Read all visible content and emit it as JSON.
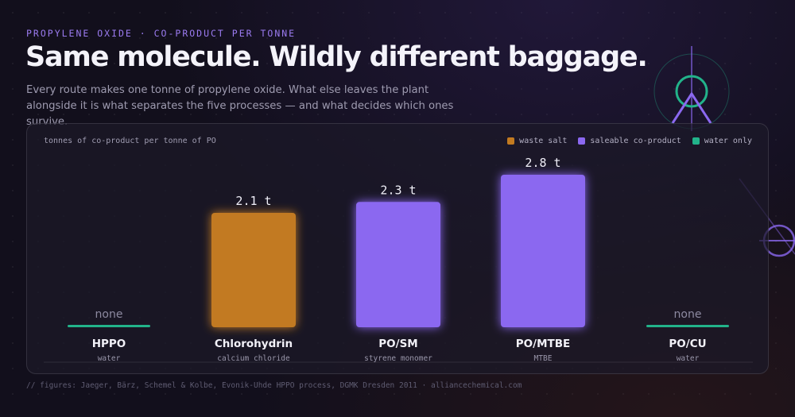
{
  "header": {
    "eyebrow": "PROPYLENE OXIDE · CO-PRODUCT PER TONNE",
    "title": "Same molecule. Wildly different baggage.",
    "subtitle": "Every route makes one tonne of propylene oxide. What else leaves the plant alongside it is what separates the five processes — and what decides which ones survive."
  },
  "colors": {
    "waste_salt": "#c27a20",
    "saleable": "#8b68f0",
    "water": "#22b38a",
    "accent": "#9b7bf0"
  },
  "chart_data": {
    "type": "bar",
    "ylabel": "tonnes of co-product per tonne of PO",
    "legend_position": "top-right",
    "legend": [
      {
        "label": "waste salt",
        "kind": "waste_salt"
      },
      {
        "label": "saleable co-product",
        "kind": "saleable"
      },
      {
        "label": "water only",
        "kind": "water"
      }
    ],
    "ylim": [
      0,
      2.8
    ],
    "unit": "t",
    "bars": [
      {
        "category": "HPPO",
        "sublabel": "water",
        "value": 0,
        "label": "none",
        "kind": "water"
      },
      {
        "category": "Chlorohydrin",
        "sublabel": "calcium chloride",
        "value": 2.1,
        "label": "2.1 t",
        "kind": "waste_salt"
      },
      {
        "category": "PO/SM",
        "sublabel": "styrene monomer",
        "value": 2.3,
        "label": "2.3 t",
        "kind": "saleable"
      },
      {
        "category": "PO/MTBE",
        "sublabel": "MTBE",
        "value": 2.8,
        "label": "2.8 t",
        "kind": "saleable"
      },
      {
        "category": "PO/CU",
        "sublabel": "water",
        "value": 0,
        "label": "none",
        "kind": "water"
      }
    ]
  },
  "footer": {
    "source": "// figures: Jaeger, Bärz, Schemel & Kolbe, Evonik-Uhde HPPO process, DGMK Dresden 2011 · alliancechemical.com"
  }
}
